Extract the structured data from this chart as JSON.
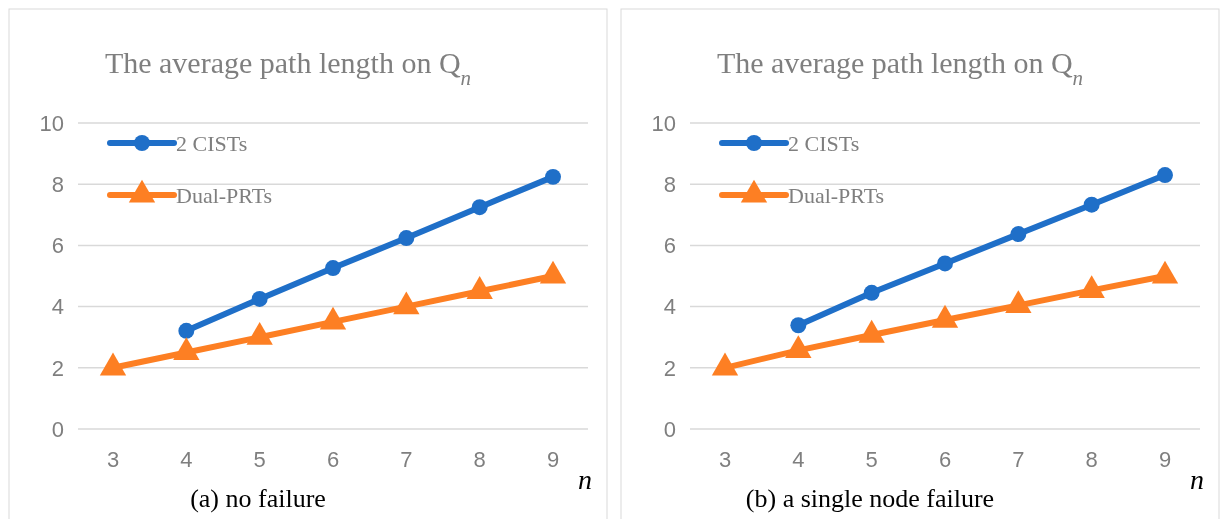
{
  "chart_data": [
    {
      "type": "line",
      "title": "The average path length on Q$_{n}$",
      "xlabel": "n",
      "annotations": [
        "(a) no failure"
      ],
      "categories": [
        "3",
        "4",
        "5",
        "6",
        "7",
        "8",
        "9"
      ],
      "ylim": [
        0,
        10
      ],
      "yticks": [
        0,
        2,
        4,
        6,
        8,
        10
      ],
      "grid": "y",
      "legend": "top left",
      "series": [
        {
          "name": "2 CISTs",
          "color": "#1f6fc8",
          "marker": "circle",
          "values": [
            null,
            3.21,
            4.25,
            5.26,
            6.24,
            7.25,
            8.24
          ]
        },
        {
          "name": "Dual-PRTs",
          "color": "#fd7f23",
          "marker": "triangle",
          "values": [
            2,
            2.5,
            3,
            3.5,
            4,
            4.5,
            5
          ]
        }
      ]
    },
    {
      "type": "line",
      "title": "The average path length on Q$_{n}$",
      "xlabel": "n",
      "annotations": [
        "(b) a single node failure"
      ],
      "categories": [
        "3",
        "4",
        "5",
        "6",
        "7",
        "8",
        "9"
      ],
      "ylim": [
        0,
        10
      ],
      "yticks": [
        0,
        2,
        4,
        6,
        8,
        10
      ],
      "grid": "y",
      "legend": "top left",
      "series": [
        {
          "name": "2 CISTs",
          "color": "#1f6fc8",
          "marker": "circle",
          "values": [
            null,
            3.39,
            4.45,
            5.41,
            6.37,
            7.33,
            8.3
          ]
        },
        {
          "name": "Dual-PRTs",
          "color": "#fd7f23",
          "marker": "triangle",
          "values": [
            2,
            2.57,
            3.07,
            3.56,
            4.04,
            4.53,
            5
          ]
        }
      ]
    }
  ]
}
